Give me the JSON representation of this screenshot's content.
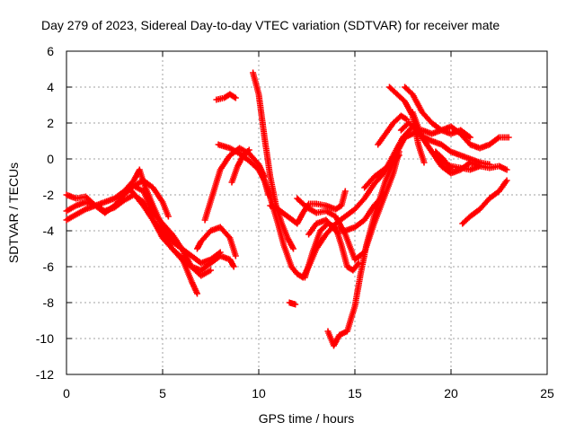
{
  "chart_data": {
    "type": "scatter",
    "title": "Day 279 of 2023, Sidereal Day-to-day VTEC variation (SDTVAR) for receiver mate",
    "xlabel": "GPS time / hours",
    "ylabel": "SDTVAR / TECUs",
    "xlim": [
      0,
      25
    ],
    "ylim": [
      -12,
      6
    ],
    "x_ticks": [
      0,
      5,
      10,
      15,
      20,
      25
    ],
    "y_ticks": [
      -12,
      -10,
      -8,
      -6,
      -4,
      -2,
      0,
      2,
      4,
      6
    ],
    "grid": true,
    "marker": "+",
    "color": "#ff0000",
    "tracks": [
      [
        [
          0.0,
          -3.4
        ],
        [
          0.5,
          -3.1
        ],
        [
          1.0,
          -2.8
        ],
        [
          1.5,
          -2.6
        ],
        [
          2.0,
          -2.4
        ],
        [
          2.5,
          -2.2
        ],
        [
          3.0,
          -1.8
        ],
        [
          3.5,
          -1.2
        ],
        [
          3.8,
          -0.6
        ],
        [
          4.0,
          -1.3
        ],
        [
          4.5,
          -2.6
        ],
        [
          5.0,
          -3.8
        ],
        [
          5.5,
          -4.6
        ],
        [
          6.0,
          -5.0
        ],
        [
          6.5,
          -5.4
        ],
        [
          7.0,
          -5.8
        ],
        [
          7.5,
          -5.6
        ],
        [
          8.0,
          -5.2
        ]
      ],
      [
        [
          0.0,
          -2.9
        ],
        [
          0.5,
          -2.6
        ],
        [
          1.0,
          -2.4
        ],
        [
          1.5,
          -2.6
        ],
        [
          2.0,
          -2.9
        ],
        [
          2.5,
          -2.7
        ],
        [
          3.0,
          -2.3
        ],
        [
          3.5,
          -2.0
        ],
        [
          4.0,
          -2.4
        ],
        [
          4.5,
          -3.4
        ],
        [
          5.0,
          -4.4
        ],
        [
          5.5,
          -5.0
        ],
        [
          6.0,
          -5.6
        ],
        [
          6.5,
          -6.0
        ],
        [
          7.0,
          -6.2
        ],
        [
          7.5,
          -5.8
        ],
        [
          8.0,
          -5.4
        ],
        [
          8.5,
          -5.6
        ],
        [
          8.7,
          -6.0
        ]
      ],
      [
        [
          0.0,
          -2.0
        ],
        [
          0.5,
          -2.2
        ],
        [
          1.0,
          -2.1
        ],
        [
          1.5,
          -2.6
        ],
        [
          2.0,
          -3.0
        ],
        [
          2.5,
          -2.6
        ],
        [
          3.0,
          -2.0
        ],
        [
          3.5,
          -1.5
        ],
        [
          4.0,
          -1.8
        ],
        [
          4.5,
          -3.0
        ],
        [
          5.0,
          -3.6
        ],
        [
          5.5,
          -4.2
        ],
        [
          6.0,
          -5.0
        ],
        [
          6.5,
          -6.0
        ],
        [
          7.0,
          -6.5
        ],
        [
          7.5,
          -6.2
        ]
      ],
      [
        [
          3.4,
          -1.8
        ],
        [
          3.7,
          -2.2
        ],
        [
          4.0,
          -2.6
        ],
        [
          4.5,
          -3.4
        ],
        [
          5.0,
          -4.2
        ],
        [
          5.5,
          -5.0
        ],
        [
          6.0,
          -5.5
        ],
        [
          6.5,
          -6.8
        ],
        [
          6.8,
          -7.5
        ]
      ],
      [
        [
          3.5,
          -1.5
        ],
        [
          4.0,
          -1.2
        ],
        [
          4.5,
          -1.6
        ],
        [
          5.0,
          -2.4
        ],
        [
          5.3,
          -3.2
        ]
      ],
      [
        [
          6.8,
          -5.0
        ],
        [
          7.0,
          -4.6
        ],
        [
          7.5,
          -4.0
        ],
        [
          8.0,
          -3.8
        ],
        [
          8.5,
          -4.4
        ],
        [
          8.8,
          -5.4
        ]
      ],
      [
        [
          7.2,
          -3.4
        ],
        [
          7.6,
          -2.0
        ],
        [
          8.0,
          -0.6
        ],
        [
          8.5,
          0.2
        ],
        [
          9.0,
          0.6
        ],
        [
          9.5,
          0.3
        ],
        [
          10.0,
          -0.3
        ],
        [
          10.3,
          -1.0
        ]
      ],
      [
        [
          7.9,
          0.8
        ],
        [
          8.5,
          0.6
        ],
        [
          9.0,
          0.3
        ],
        [
          9.5,
          -0.1
        ],
        [
          10.0,
          -0.6
        ],
        [
          10.3,
          -1.2
        ],
        [
          10.5,
          -2.0
        ]
      ],
      [
        [
          8.6,
          -1.3
        ],
        [
          8.9,
          -0.4
        ],
        [
          9.2,
          0.2
        ],
        [
          9.5,
          0.5
        ]
      ],
      [
        [
          7.8,
          3.3
        ],
        [
          8.2,
          3.4
        ],
        [
          8.5,
          3.6
        ],
        [
          8.8,
          3.4
        ]
      ],
      [
        [
          9.7,
          4.8
        ],
        [
          10.0,
          3.6
        ],
        [
          10.3,
          1.2
        ],
        [
          10.6,
          -1.0
        ],
        [
          10.9,
          -2.6
        ],
        [
          11.2,
          -3.6
        ],
        [
          11.5,
          -4.4
        ],
        [
          11.8,
          -5.0
        ]
      ],
      [
        [
          10.0,
          -0.4
        ],
        [
          10.5,
          -1.8
        ],
        [
          11.0,
          -3.6
        ],
        [
          11.3,
          -4.8
        ],
        [
          11.7,
          -6.0
        ],
        [
          12.0,
          -6.4
        ],
        [
          12.3,
          -6.6
        ],
        [
          12.6,
          -6.0
        ],
        [
          13.0,
          -5.0
        ],
        [
          13.5,
          -4.2
        ],
        [
          14.0,
          -3.6
        ],
        [
          14.5,
          -3.2
        ],
        [
          15.0,
          -2.8
        ],
        [
          15.5,
          -2.2
        ],
        [
          16.0,
          -1.4
        ],
        [
          16.5,
          -0.8
        ],
        [
          17.0,
          0.2
        ],
        [
          17.5,
          1.2
        ],
        [
          18.0,
          1.8
        ],
        [
          18.5,
          1.2
        ],
        [
          19.0,
          0.4
        ],
        [
          19.5,
          -0.2
        ],
        [
          20.0,
          -0.4
        ],
        [
          20.5,
          -0.5
        ],
        [
          21.0,
          -0.6
        ],
        [
          21.5,
          -0.4
        ],
        [
          22.0,
          -0.5
        ],
        [
          22.5,
          -0.4
        ],
        [
          22.9,
          -0.6
        ]
      ],
      [
        [
          10.6,
          -2.6
        ],
        [
          11.0,
          -2.8
        ],
        [
          11.5,
          -3.2
        ],
        [
          12.0,
          -3.6
        ],
        [
          12.3,
          -3.0
        ],
        [
          12.6,
          -2.5
        ],
        [
          13.0,
          -2.5
        ],
        [
          13.5,
          -2.6
        ],
        [
          14.0,
          -2.8
        ],
        [
          14.3,
          -2.6
        ],
        [
          14.5,
          -1.8
        ]
      ],
      [
        [
          12.0,
          -2.2
        ],
        [
          12.5,
          -2.7
        ],
        [
          13.0,
          -3.0
        ],
        [
          13.5,
          -2.9
        ],
        [
          14.0,
          -3.2
        ],
        [
          14.5,
          -4.2
        ],
        [
          15.0,
          -5.6
        ],
        [
          15.5,
          -5.2
        ],
        [
          16.0,
          -3.6
        ],
        [
          16.5,
          -2.2
        ],
        [
          17.0,
          -0.8
        ],
        [
          17.3,
          0.4
        ]
      ],
      [
        [
          12.4,
          -6.6
        ],
        [
          12.8,
          -5.2
        ],
        [
          13.2,
          -4.0
        ],
        [
          13.6,
          -3.6
        ],
        [
          14.0,
          -3.8
        ],
        [
          14.3,
          -4.8
        ],
        [
          14.6,
          -6.0
        ],
        [
          14.9,
          -6.2
        ],
        [
          15.2,
          -5.8
        ]
      ],
      [
        [
          12.6,
          -4.2
        ],
        [
          13.0,
          -3.6
        ],
        [
          13.5,
          -3.4
        ],
        [
          14.0,
          -4.0
        ],
        [
          14.5,
          -4.0
        ],
        [
          15.0,
          -3.8
        ],
        [
          15.5,
          -3.4
        ],
        [
          16.0,
          -2.6
        ],
        [
          16.5,
          -2.0
        ]
      ],
      [
        [
          13.6,
          -9.6
        ],
        [
          13.9,
          -10.4
        ],
        [
          14.2,
          -9.8
        ],
        [
          14.6,
          -9.6
        ],
        [
          15.0,
          -8.2
        ],
        [
          15.3,
          -6.4
        ],
        [
          15.6,
          -4.8
        ],
        [
          16.0,
          -3.2
        ],
        [
          16.3,
          -2.2
        ],
        [
          16.6,
          -1.2
        ],
        [
          17.0,
          -0.2
        ],
        [
          17.2,
          0.2
        ]
      ],
      [
        [
          15.5,
          -1.6
        ],
        [
          16.0,
          -1.0
        ],
        [
          16.5,
          -0.6
        ],
        [
          17.0,
          -0.2
        ],
        [
          17.3,
          0.2
        ]
      ],
      [
        [
          16.2,
          0.8
        ],
        [
          16.6,
          1.4
        ],
        [
          17.0,
          2.0
        ],
        [
          17.4,
          2.4
        ],
        [
          17.7,
          2.2
        ]
      ],
      [
        [
          16.8,
          -0.6
        ],
        [
          17.2,
          0.4
        ],
        [
          17.6,
          1.2
        ],
        [
          18.0,
          1.4
        ],
        [
          18.5,
          1.6
        ],
        [
          19.0,
          1.4
        ],
        [
          19.5,
          1.6
        ],
        [
          20.0,
          1.8
        ],
        [
          20.5,
          1.4
        ],
        [
          21.0,
          0.8
        ],
        [
          21.5,
          0.6
        ],
        [
          22.0,
          0.8
        ],
        [
          22.5,
          1.2
        ],
        [
          23.0,
          1.2
        ]
      ],
      [
        [
          17.4,
          1.6
        ],
        [
          17.8,
          2.0
        ],
        [
          18.2,
          1.6
        ],
        [
          18.6,
          1.2
        ],
        [
          19.0,
          1.0
        ],
        [
          19.5,
          0.8
        ],
        [
          20.0,
          0.4
        ],
        [
          20.5,
          0.2
        ],
        [
          21.0,
          0.0
        ],
        [
          21.5,
          -0.2
        ],
        [
          22.0,
          -0.3
        ]
      ],
      [
        [
          16.8,
          4.0
        ],
        [
          17.2,
          3.6
        ],
        [
          17.6,
          3.2
        ],
        [
          18.0,
          2.4
        ],
        [
          18.3,
          0.8
        ],
        [
          18.6,
          -0.2
        ]
      ],
      [
        [
          17.6,
          4.0
        ],
        [
          18.0,
          3.6
        ],
        [
          18.5,
          2.6
        ],
        [
          19.0,
          2.0
        ],
        [
          19.5,
          1.6
        ],
        [
          20.0,
          1.4
        ],
        [
          20.5,
          1.6
        ],
        [
          21.0,
          1.2
        ]
      ],
      [
        [
          18.0,
          2.6
        ],
        [
          18.5,
          1.2
        ],
        [
          19.0,
          0.4
        ],
        [
          19.5,
          -0.4
        ],
        [
          20.0,
          -0.8
        ],
        [
          20.5,
          -0.6
        ],
        [
          21.0,
          -0.2
        ],
        [
          21.5,
          -0.4
        ]
      ],
      [
        [
          19.2,
          0.4
        ],
        [
          19.6,
          0.0
        ],
        [
          20.0,
          -0.6
        ]
      ],
      [
        [
          20.6,
          -3.6
        ],
        [
          21.0,
          -3.2
        ],
        [
          21.5,
          -2.8
        ],
        [
          22.0,
          -2.2
        ],
        [
          22.5,
          -1.8
        ],
        [
          22.9,
          -1.2
        ]
      ],
      [
        [
          11.6,
          -8.0
        ],
        [
          11.9,
          -8.1
        ]
      ]
    ]
  }
}
